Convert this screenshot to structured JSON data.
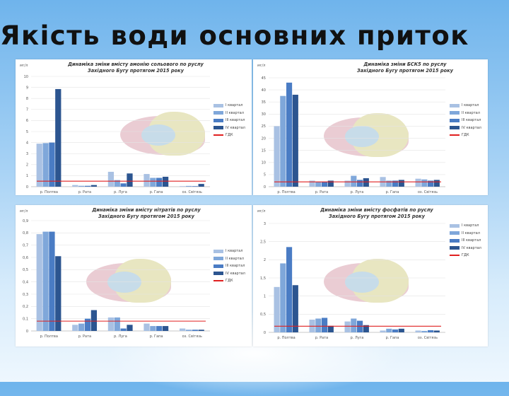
{
  "slide_title": "Якість води основних приток",
  "chart_data": [
    {
      "type": "bar",
      "title_lines": [
        "Динаміка зміни вмісту амонію сольового по руслу",
        "Західного Бугу протягом 2015 року"
      ],
      "ylabel": "мг/л",
      "categories": [
        "р. Полтва",
        "р. Рата",
        "р. Луга",
        "р. Гапа",
        "оз. Світязь"
      ],
      "series": [
        {
          "name": "I квартал",
          "values": [
            3.9,
            0.15,
            1.35,
            1.15,
            0.05
          ]
        },
        {
          "name": "II квартал",
          "values": [
            3.95,
            0.08,
            0.6,
            0.8,
            0.07
          ]
        },
        {
          "name": "III квартал",
          "values": [
            4.0,
            0.08,
            0.3,
            0.8,
            0.05
          ]
        },
        {
          "name": "IV квартал",
          "values": [
            8.85,
            0.15,
            1.2,
            0.9,
            0.25
          ]
        }
      ],
      "gdk_label": "ГДК",
      "gdk_value": 0.5,
      "ylim": [
        0,
        10
      ],
      "yticks": [
        "0",
        "1",
        "2",
        "3",
        "4",
        "5",
        "6",
        "7",
        "8",
        "9",
        "10"
      ],
      "legend_position": "right"
    },
    {
      "type": "bar",
      "title_lines": [
        "Динаміка зміни БСК5 по руслу",
        "Західного Бугу протягом 2015 року"
      ],
      "ylabel": "мг/л",
      "categories": [
        "р. Полтва",
        "р. Рата",
        "р. Луга",
        "р. Гапа",
        "оз. Світязь"
      ],
      "series": [
        {
          "name": "I квартал",
          "values": [
            25,
            2.5,
            2.5,
            4.0,
            3.3
          ]
        },
        {
          "name": "II квартал",
          "values": [
            37.5,
            2.0,
            4.5,
            2.5,
            3.0
          ]
        },
        {
          "name": "III квартал",
          "values": [
            43,
            2.0,
            2.8,
            2.5,
            2.5
          ]
        },
        {
          "name": "IV квартал",
          "values": [
            38,
            2.5,
            3.5,
            2.8,
            2.8
          ]
        }
      ],
      "gdk_label": "ГДК",
      "gdk_value": 2.0,
      "ylim": [
        0,
        45
      ],
      "yticks": [
        "0",
        "5",
        "10",
        "15",
        "20",
        "25",
        "30",
        "35",
        "40",
        "45"
      ],
      "legend_position": "right"
    },
    {
      "type": "bar",
      "title_lines": [
        "Динаміка зміни вмісту нітратів по руслу",
        "Західного Бугу протягом 2015 року"
      ],
      "ylabel": "мг/л",
      "categories": [
        "р. Полтва",
        "р. Рата",
        "р. Луга",
        "р. Гапа",
        "оз. Світязь"
      ],
      "series": [
        {
          "name": "I квартал",
          "values": [
            0.79,
            0.05,
            0.11,
            0.06,
            0.02
          ]
        },
        {
          "name": "II квартал",
          "values": [
            0.81,
            0.06,
            0.11,
            0.04,
            0.01
          ]
        },
        {
          "name": "III квартал",
          "values": [
            0.81,
            0.1,
            0.02,
            0.04,
            0.01
          ]
        },
        {
          "name": "IV квартал",
          "values": [
            0.61,
            0.17,
            0.05,
            0.04,
            0.01
          ]
        }
      ],
      "gdk_label": "ГДК",
      "gdk_value": 0.08,
      "ylim": [
        0,
        0.9
      ],
      "yticks": [
        "0",
        "0,1",
        "0,2",
        "0,3",
        "0,4",
        "0,5",
        "0,6",
        "0,7",
        "0,8",
        "0,9"
      ],
      "legend_position": "right"
    },
    {
      "type": "bar",
      "title_lines": [
        "Динаміка зміни вмісту фосфатів по руслу",
        "Західного Бугу протягом 2015 року"
      ],
      "ylabel": "мг/л",
      "categories": [
        "р. Полтва",
        "р. Рата",
        "р. Луга",
        "р. Гапа",
        "оз. Світязь"
      ],
      "series": [
        {
          "name": "I квартал",
          "values": [
            1.25,
            0.35,
            0.3,
            0.05,
            0.05
          ]
        },
        {
          "name": "II квартал",
          "values": [
            1.9,
            0.38,
            0.38,
            0.1,
            0.04
          ]
        },
        {
          "name": "III квартал",
          "values": [
            2.35,
            0.4,
            0.32,
            0.08,
            0.06
          ]
        },
        {
          "name": "IV квартал",
          "values": [
            1.3,
            0.18,
            0.2,
            0.1,
            0.05
          ]
        }
      ],
      "gdk_label": "ГДК",
      "gdk_value": 0.17,
      "ylim": [
        0,
        3
      ],
      "yticks": [
        "0",
        "0,5",
        "1",
        "1,5",
        "2",
        "2,5",
        "3"
      ],
      "legend_position": "right"
    }
  ],
  "colors": {
    "series": [
      "#a9c1e3",
      "#7fa7da",
      "#4a7cc4",
      "#2c5590"
    ],
    "gdk": "#e02020",
    "axis_text": "#555555"
  }
}
